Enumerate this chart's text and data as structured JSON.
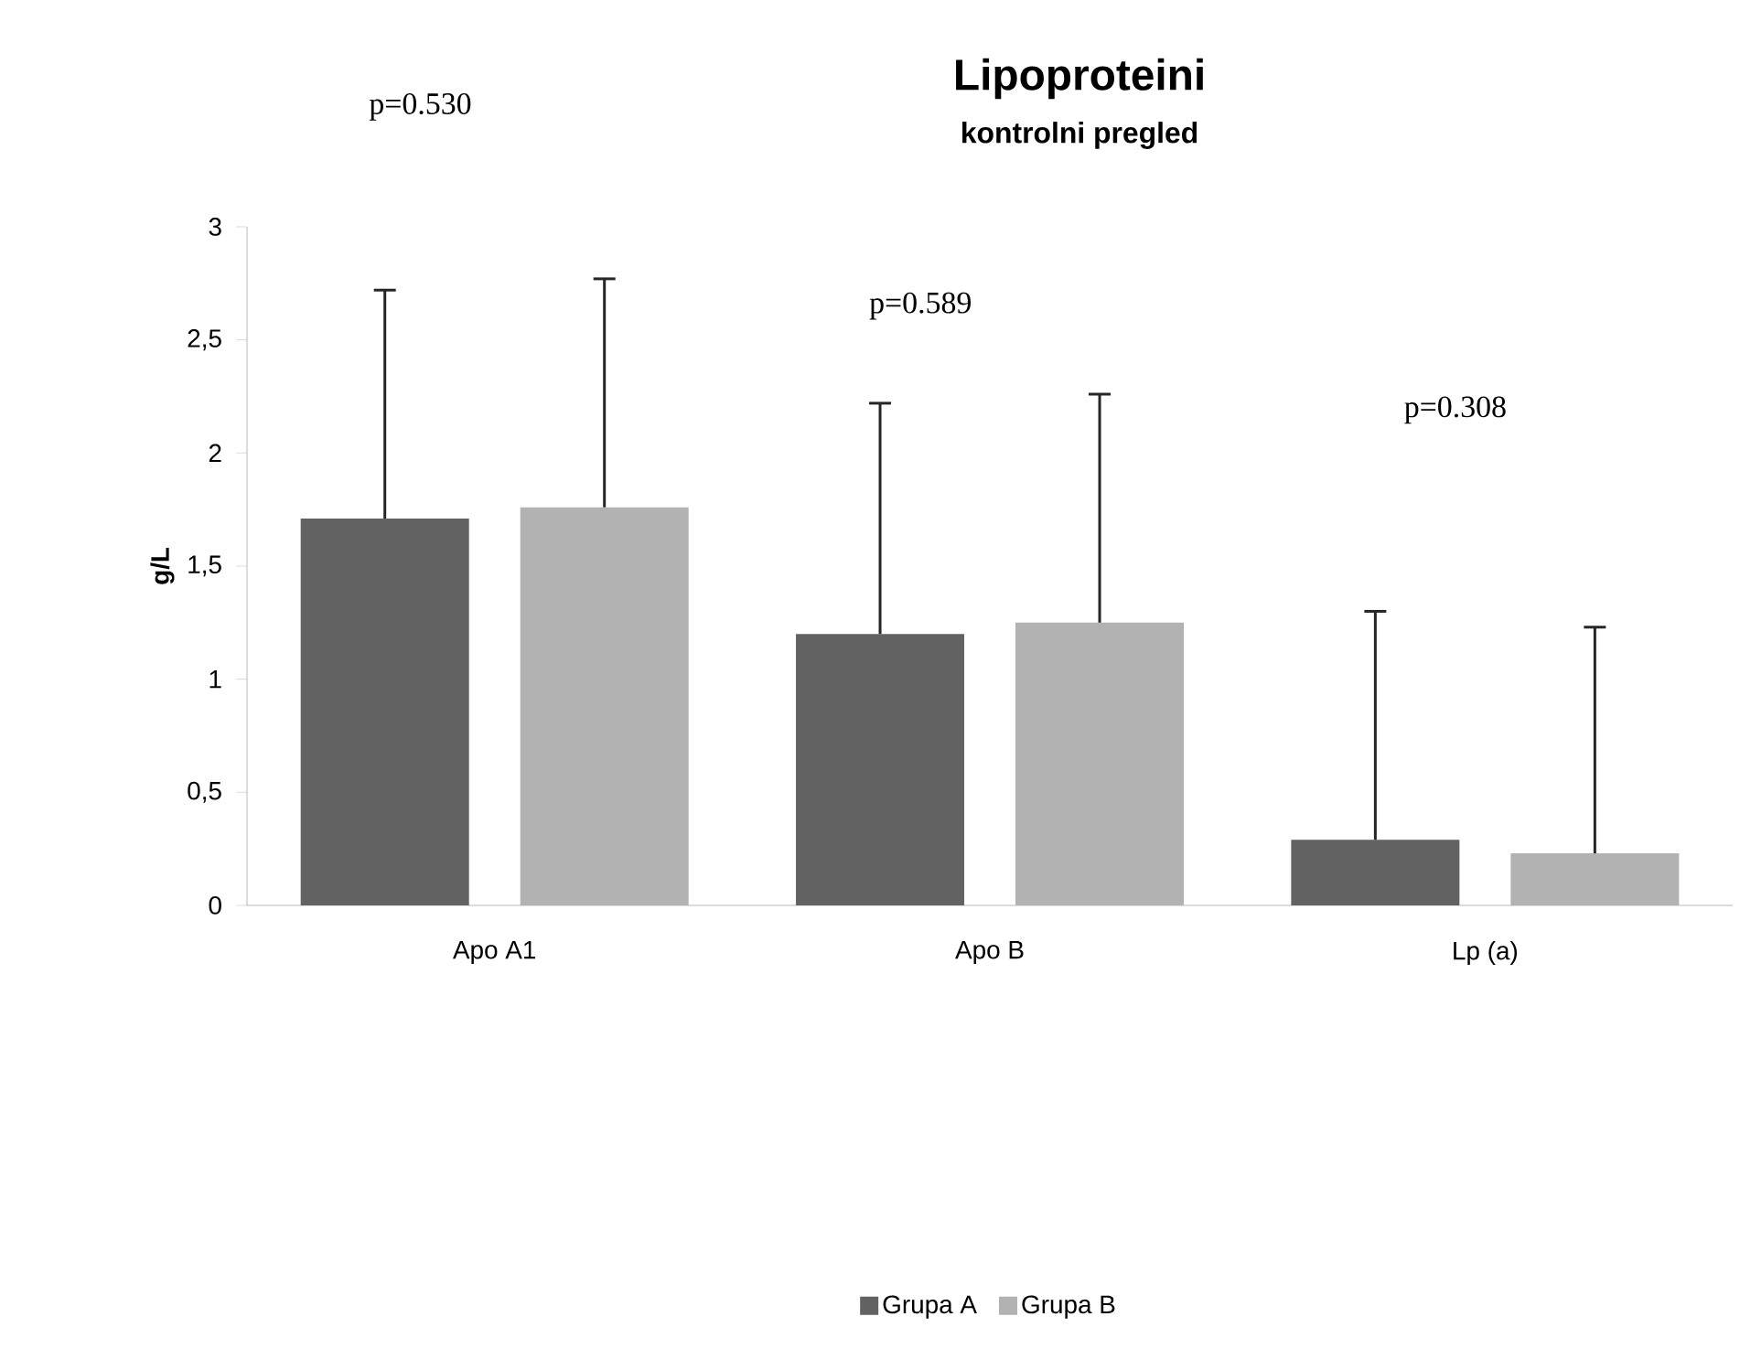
{
  "chart_data": {
    "type": "bar",
    "title": "Lipoproteini",
    "subtitle": "kontrolni pregled",
    "ylabel": "g/L",
    "categories": [
      "Apo A1",
      "Apo B",
      "Lp (a)"
    ],
    "series": [
      {
        "name": "Grupa A",
        "color": "#626262",
        "values": [
          1.71,
          1.2,
          0.29
        ],
        "errors": [
          [
            1.71,
            2.72
          ],
          [
            1.2,
            2.22
          ],
          [
            0.29,
            1.3
          ]
        ]
      },
      {
        "name": "Grupa B",
        "color": "#b2b2b2",
        "values": [
          1.76,
          1.25,
          0.23
        ],
        "errors": [
          [
            1.76,
            2.77
          ],
          [
            1.25,
            2.26
          ],
          [
            0.23,
            1.23
          ]
        ]
      }
    ],
    "ylim": [
      0,
      3
    ],
    "yticks": [
      {
        "value": 0,
        "label": "0"
      },
      {
        "value": 0.5,
        "label": "0,5"
      },
      {
        "value": 1,
        "label": "1"
      },
      {
        "value": 1.5,
        "label": "1,5"
      },
      {
        "value": 2,
        "label": "2"
      },
      {
        "value": 2.5,
        "label": "2,5"
      },
      {
        "value": 3,
        "label": "3"
      }
    ],
    "annotations": [
      "p=0.530",
      "p=0.589",
      "p=0.308"
    ],
    "legend": "bottom",
    "grid": false
  }
}
